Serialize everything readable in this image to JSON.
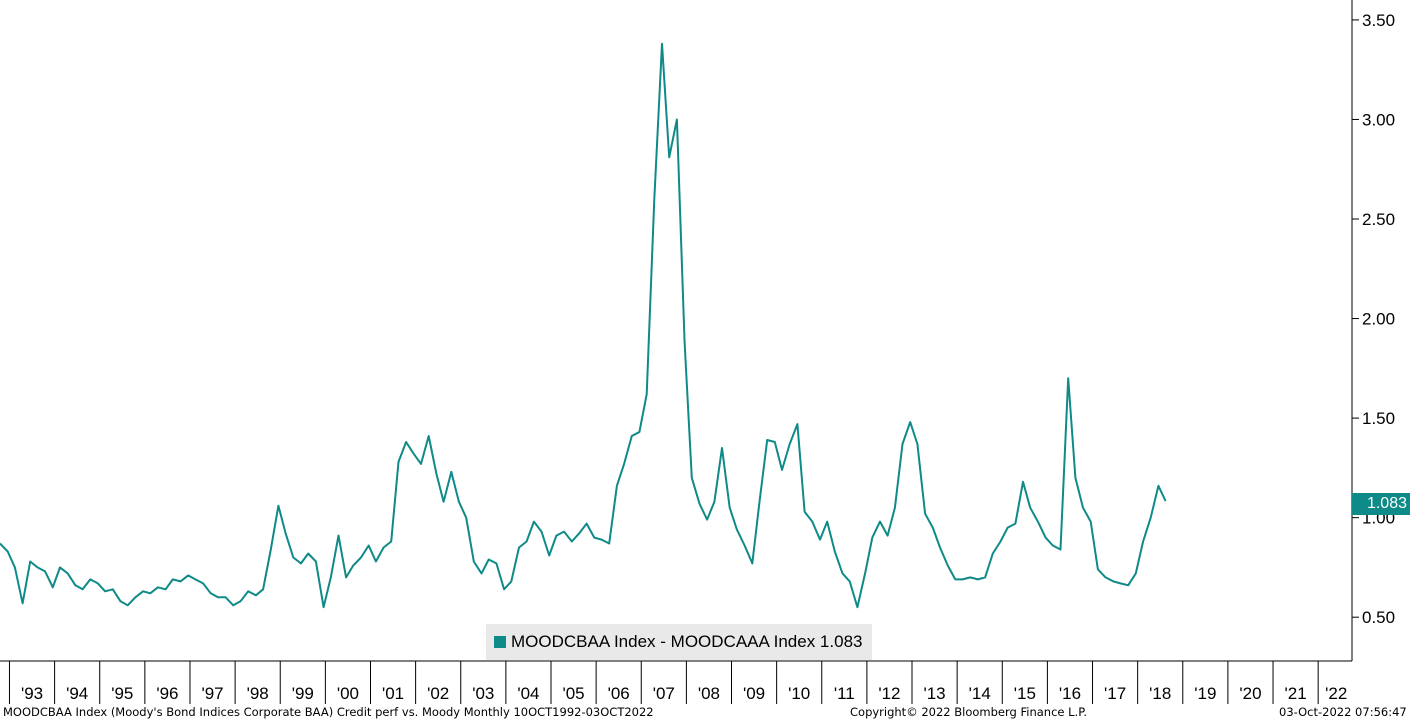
{
  "colors": {
    "series": "#0e8a88",
    "axis": "#000000",
    "legend_bg": "#e9e9e9"
  },
  "footer": {
    "description": "MOODCBAA Index (Moody's Bond Indices Corporate BAA) Credit perf vs. Moody  Monthly 10OCT1992-03OCT2022",
    "copyright": "Copyright© 2022 Bloomberg Finance L.P.",
    "timestamp": "03-Oct-2022 07:56:47"
  },
  "legend": {
    "label": "MOODCBAA Index - MOODCAAA Index 1.083"
  },
  "last_value_label": "1.083",
  "chart_data": {
    "type": "line",
    "title": "",
    "xlabel": "",
    "ylabel": "",
    "x_range": [
      1992.79,
      2022.75
    ],
    "ylim": [
      0.28,
      3.6
    ],
    "y_ticks": [
      {
        "value": 0.5,
        "label": "0.50"
      },
      {
        "value": 1.0,
        "label": "1.00"
      },
      {
        "value": 1.5,
        "label": "1.50"
      },
      {
        "value": 2.0,
        "label": "2.00"
      },
      {
        "value": 2.5,
        "label": "2.50"
      },
      {
        "value": 3.0,
        "label": "3.00"
      },
      {
        "value": 3.5,
        "label": "3.50"
      }
    ],
    "x_ticks": [
      "'93",
      "'94",
      "'95",
      "'96",
      "'97",
      "'98",
      "'99",
      "'00",
      "'01",
      "'02",
      "'03",
      "'04",
      "'05",
      "'06",
      "'07",
      "'08",
      "'09",
      "'10",
      "'11",
      "'12",
      "'13",
      "'14",
      "'15",
      "'16",
      "'17",
      "'18",
      "'19",
      "'20",
      "'21",
      "'22"
    ],
    "y_axis_position": "right",
    "grid": false,
    "legend_position": "bottom-center",
    "series": [
      {
        "name": "MOODCBAA Index - MOODCAAA Index",
        "last": 1.083,
        "points": [
          [
            1992.79,
            0.87
          ],
          [
            1992.96,
            0.83
          ],
          [
            1993.12,
            0.75
          ],
          [
            1993.29,
            0.57
          ],
          [
            1993.46,
            0.78
          ],
          [
            1993.62,
            0.75
          ],
          [
            1993.79,
            0.73
          ],
          [
            1993.96,
            0.65
          ],
          [
            1994.12,
            0.75
          ],
          [
            1994.29,
            0.72
          ],
          [
            1994.46,
            0.66
          ],
          [
            1994.62,
            0.64
          ],
          [
            1994.79,
            0.69
          ],
          [
            1994.96,
            0.67
          ],
          [
            1995.12,
            0.63
          ],
          [
            1995.29,
            0.64
          ],
          [
            1995.46,
            0.58
          ],
          [
            1995.62,
            0.56
          ],
          [
            1995.79,
            0.6
          ],
          [
            1995.96,
            0.63
          ],
          [
            1996.12,
            0.62
          ],
          [
            1996.29,
            0.65
          ],
          [
            1996.46,
            0.64
          ],
          [
            1996.62,
            0.69
          ],
          [
            1996.79,
            0.68
          ],
          [
            1996.96,
            0.71
          ],
          [
            1997.12,
            0.69
          ],
          [
            1997.29,
            0.67
          ],
          [
            1997.46,
            0.62
          ],
          [
            1997.62,
            0.6
          ],
          [
            1997.79,
            0.6
          ],
          [
            1997.96,
            0.56
          ],
          [
            1998.12,
            0.58
          ],
          [
            1998.29,
            0.63
          ],
          [
            1998.46,
            0.61
          ],
          [
            1998.62,
            0.64
          ],
          [
            1998.79,
            0.84
          ],
          [
            1998.96,
            1.06
          ],
          [
            1999.12,
            0.92
          ],
          [
            1999.29,
            0.8
          ],
          [
            1999.46,
            0.77
          ],
          [
            1999.62,
            0.82
          ],
          [
            1999.79,
            0.78
          ],
          [
            1999.96,
            0.55
          ],
          [
            2000.12,
            0.7
          ],
          [
            2000.29,
            0.91
          ],
          [
            2000.46,
            0.7
          ],
          [
            2000.62,
            0.76
          ],
          [
            2000.79,
            0.8
          ],
          [
            2000.96,
            0.86
          ],
          [
            2001.12,
            0.78
          ],
          [
            2001.29,
            0.85
          ],
          [
            2001.46,
            0.88
          ],
          [
            2001.62,
            1.28
          ],
          [
            2001.79,
            1.38
          ],
          [
            2001.96,
            1.32
          ],
          [
            2002.12,
            1.27
          ],
          [
            2002.29,
            1.41
          ],
          [
            2002.46,
            1.22
          ],
          [
            2002.62,
            1.08
          ],
          [
            2002.79,
            1.23
          ],
          [
            2002.96,
            1.08
          ],
          [
            2003.12,
            1.0
          ],
          [
            2003.29,
            0.78
          ],
          [
            2003.46,
            0.72
          ],
          [
            2003.62,
            0.79
          ],
          [
            2003.79,
            0.77
          ],
          [
            2003.96,
            0.64
          ],
          [
            2004.12,
            0.68
          ],
          [
            2004.29,
            0.85
          ],
          [
            2004.46,
            0.88
          ],
          [
            2004.62,
            0.98
          ],
          [
            2004.79,
            0.93
          ],
          [
            2004.96,
            0.81
          ],
          [
            2005.12,
            0.91
          ],
          [
            2005.29,
            0.93
          ],
          [
            2005.46,
            0.88
          ],
          [
            2005.62,
            0.92
          ],
          [
            2005.79,
            0.97
          ],
          [
            2005.96,
            0.9
          ],
          [
            2006.12,
            0.89
          ],
          [
            2006.29,
            0.87
          ],
          [
            2006.46,
            1.16
          ],
          [
            2006.62,
            1.27
          ],
          [
            2006.79,
            1.41
          ],
          [
            2006.96,
            1.43
          ],
          [
            2007.12,
            1.62
          ],
          [
            2007.29,
            2.6
          ],
          [
            2007.46,
            3.38
          ],
          [
            2007.62,
            2.81
          ],
          [
            2007.79,
            3.0
          ],
          [
            2007.96,
            1.88
          ],
          [
            2008.12,
            1.2
          ],
          [
            2008.29,
            1.07
          ],
          [
            2008.46,
            0.99
          ],
          [
            2008.62,
            1.08
          ],
          [
            2008.79,
            1.35
          ],
          [
            2008.96,
            1.05
          ],
          [
            2009.12,
            0.94
          ],
          [
            2009.29,
            0.86
          ],
          [
            2009.46,
            0.77
          ],
          [
            2009.62,
            1.08
          ],
          [
            2009.79,
            1.39
          ],
          [
            2009.96,
            1.38
          ],
          [
            2010.12,
            1.24
          ],
          [
            2010.29,
            1.37
          ],
          [
            2010.46,
            1.47
          ],
          [
            2010.62,
            1.03
          ],
          [
            2010.79,
            0.98
          ],
          [
            2010.96,
            0.89
          ],
          [
            2011.12,
            0.98
          ],
          [
            2011.29,
            0.83
          ],
          [
            2011.46,
            0.72
          ],
          [
            2011.62,
            0.68
          ],
          [
            2011.79,
            0.55
          ],
          [
            2011.96,
            0.72
          ],
          [
            2012.12,
            0.9
          ],
          [
            2012.29,
            0.98
          ],
          [
            2012.46,
            0.91
          ],
          [
            2012.62,
            1.05
          ],
          [
            2012.79,
            1.37
          ],
          [
            2012.96,
            1.48
          ],
          [
            2013.12,
            1.37
          ],
          [
            2013.29,
            1.02
          ],
          [
            2013.46,
            0.95
          ],
          [
            2013.62,
            0.85
          ],
          [
            2013.79,
            0.76
          ],
          [
            2013.96,
            0.69
          ],
          [
            2014.12,
            0.69
          ],
          [
            2014.29,
            0.7
          ],
          [
            2014.46,
            0.69
          ],
          [
            2014.62,
            0.7
          ],
          [
            2014.79,
            0.82
          ],
          [
            2014.96,
            0.88
          ],
          [
            2015.12,
            0.95
          ],
          [
            2015.29,
            0.97
          ],
          [
            2015.46,
            1.18
          ],
          [
            2015.62,
            1.05
          ],
          [
            2015.79,
            0.98
          ],
          [
            2015.96,
            0.9
          ],
          [
            2016.12,
            0.86
          ],
          [
            2016.29,
            0.84
          ],
          [
            2016.46,
            1.7
          ],
          [
            2016.62,
            1.2
          ],
          [
            2016.79,
            1.05
          ],
          [
            2016.96,
            0.98
          ],
          [
            2017.12,
            0.74
          ],
          [
            2017.29,
            0.7
          ],
          [
            2017.46,
            0.68
          ],
          [
            2017.62,
            0.67
          ],
          [
            2017.79,
            0.66
          ],
          [
            2017.96,
            0.72
          ],
          [
            2018.12,
            0.88
          ],
          [
            2018.29,
            1.0
          ],
          [
            2018.46,
            1.16
          ],
          [
            2018.62,
            1.083
          ]
        ]
      }
    ]
  }
}
